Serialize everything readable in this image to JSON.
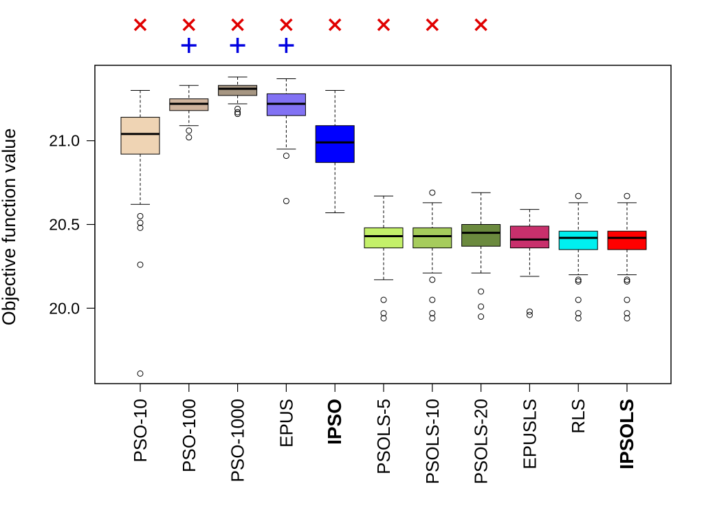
{
  "chart_data": {
    "type": "boxplot",
    "title": "",
    "xlabel": "",
    "ylabel": "Objective function value",
    "ylim": [
      19.55,
      21.45
    ],
    "yticks": [
      "20.0",
      "20.5",
      "21.0"
    ],
    "marker_colors": {
      "cross": "#e00000",
      "plus": "#0000e0"
    },
    "bold_labels": [
      "IPSO",
      "IPSOLS"
    ],
    "series": [
      {
        "name": "PSO-10",
        "color": "#efd4b4",
        "whisker_low": 20.62,
        "q1": 20.92,
        "median": 21.04,
        "q3": 21.14,
        "whisker_high": 21.3,
        "outliers": [
          20.55,
          20.51,
          20.48,
          20.26,
          19.61
        ],
        "marks": [
          "cross"
        ]
      },
      {
        "name": "PSO-100",
        "color": "#cfb49e",
        "whisker_low": 21.09,
        "q1": 21.18,
        "median": 21.22,
        "q3": 21.25,
        "whisker_high": 21.33,
        "outliers": [
          21.06,
          21.02
        ],
        "marks": [
          "cross",
          "plus"
        ]
      },
      {
        "name": "PSO-1000",
        "color": "#a69682",
        "whisker_low": 21.22,
        "q1": 21.27,
        "median": 21.31,
        "q3": 21.33,
        "whisker_high": 21.38,
        "outliers": [
          21.19,
          21.17,
          21.16
        ],
        "marks": [
          "cross",
          "plus"
        ]
      },
      {
        "name": "EPUS",
        "color": "#8272f4",
        "whisker_low": 20.95,
        "q1": 21.15,
        "median": 21.22,
        "q3": 21.28,
        "whisker_high": 21.37,
        "outliers": [
          20.91,
          20.64
        ],
        "marks": [
          "cross",
          "plus"
        ]
      },
      {
        "name": "IPSO",
        "color": "#0000ff",
        "whisker_low": 20.57,
        "q1": 20.87,
        "median": 20.99,
        "q3": 21.09,
        "whisker_high": 21.3,
        "outliers": [],
        "marks": [
          "cross"
        ]
      },
      {
        "name": "PSOLS-5",
        "color": "#c4f06a",
        "whisker_low": 20.17,
        "q1": 20.36,
        "median": 20.43,
        "q3": 20.48,
        "whisker_high": 20.67,
        "outliers": [
          20.05,
          19.97,
          19.94
        ],
        "marks": [
          "cross"
        ]
      },
      {
        "name": "PSOLS-10",
        "color": "#a6cc5c",
        "whisker_low": 20.21,
        "q1": 20.36,
        "median": 20.43,
        "q3": 20.48,
        "whisker_high": 20.63,
        "outliers": [
          20.69,
          20.17,
          20.05,
          19.97,
          19.94
        ],
        "marks": [
          "cross"
        ]
      },
      {
        "name": "PSOLS-20",
        "color": "#6b8a3e",
        "whisker_low": 20.21,
        "q1": 20.37,
        "median": 20.45,
        "q3": 20.5,
        "whisker_high": 20.69,
        "outliers": [
          20.1,
          20.01,
          19.95
        ],
        "marks": [
          "cross"
        ]
      },
      {
        "name": "EPUSLS",
        "color": "#c8306c",
        "whisker_low": 20.19,
        "q1": 20.36,
        "median": 20.41,
        "q3": 20.49,
        "whisker_high": 20.59,
        "outliers": [
          19.98,
          19.96
        ],
        "marks": []
      },
      {
        "name": "RLS",
        "color": "#00f0f0",
        "whisker_low": 20.2,
        "q1": 20.35,
        "median": 20.42,
        "q3": 20.46,
        "whisker_high": 20.63,
        "outliers": [
          20.67,
          20.17,
          20.16,
          20.05,
          19.97,
          19.94
        ],
        "marks": []
      },
      {
        "name": "IPSOLS",
        "color": "#ff0000",
        "whisker_low": 20.2,
        "q1": 20.35,
        "median": 20.42,
        "q3": 20.46,
        "whisker_high": 20.63,
        "outliers": [
          20.67,
          20.17,
          20.16,
          20.05,
          19.97,
          19.94
        ],
        "marks": []
      }
    ]
  }
}
